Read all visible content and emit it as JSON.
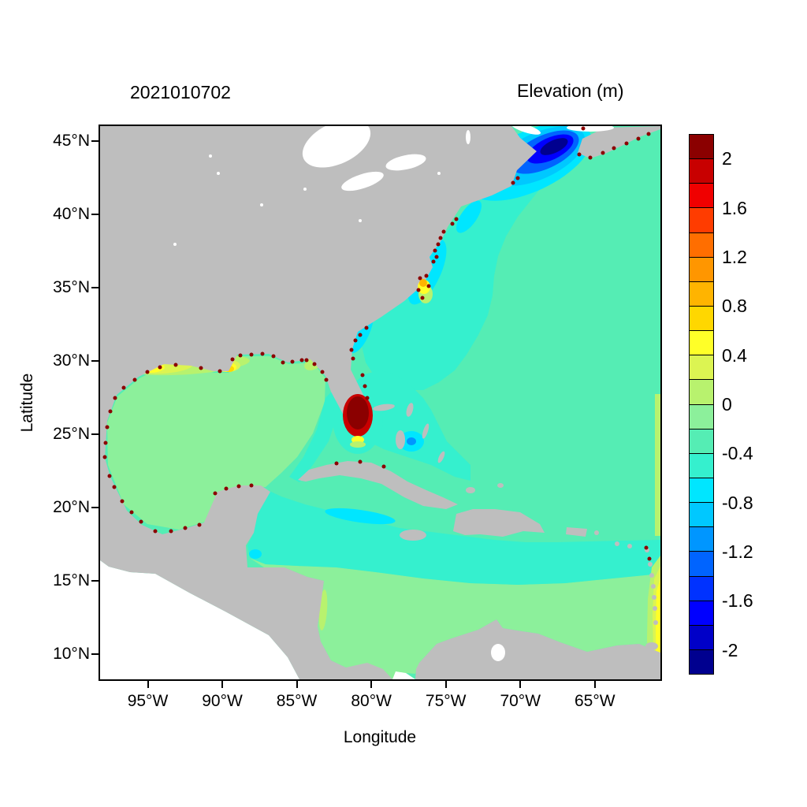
{
  "chart_data": {
    "type": "heatmap",
    "title": "2021010702",
    "colorbar_title": "Elevation (m)",
    "xlabel": "Longitude",
    "ylabel": "Latitude",
    "x_ticks": [
      "95°W",
      "90°W",
      "85°W",
      "80°W",
      "75°W",
      "70°W",
      "65°W"
    ],
    "x_tick_lons_w": [
      95,
      90,
      85,
      80,
      75,
      70,
      65
    ],
    "y_ticks": [
      "10°N",
      "15°N",
      "20°N",
      "25°N",
      "30°N",
      "35°N",
      "40°N",
      "45°N"
    ],
    "y_tick_lats_n": [
      10,
      15,
      20,
      25,
      30,
      35,
      40,
      45
    ],
    "lon_range_w": [
      98.2,
      60.6
    ],
    "lat_range_n": [
      8.3,
      46.0
    ],
    "grid": false,
    "land_color": "#bebebe",
    "unmodeled_water_color": "#ffffff",
    "colorbar": {
      "position": "right",
      "range": [
        -2.2,
        2.2
      ],
      "step": 0.2,
      "tick_values": [
        2,
        1.6,
        1.2,
        0.8,
        0.4,
        0,
        -0.4,
        -0.8,
        -1.2,
        -1.6,
        -2
      ],
      "tick_labels": [
        "2",
        "1.6",
        "1.2",
        "0.8",
        "0.4",
        "0",
        "-0.4",
        "-0.8",
        "-1.2",
        "-1.6",
        "-2"
      ],
      "colors": [
        "#00008F",
        "#0000C8",
        "#0000FF",
        "#0032FF",
        "#0064FF",
        "#0096FF",
        "#00C8FF",
        "#00E6FF",
        "#35F0CE",
        "#55EDB4",
        "#8CF09B",
        "#B8F26E",
        "#DCF452",
        "#FFFF28",
        "#FFD700",
        "#FFB400",
        "#FF9600",
        "#FF6E00",
        "#FF3C00",
        "#F00000",
        "#C80000",
        "#8B0000"
      ]
    },
    "region_values": {
      "open_atlantic": -0.3,
      "gulf_of_mexico": -0.1,
      "caribbean_south": -0.1,
      "caribbean_north": -0.5,
      "west_atlantic_shelf": -0.5,
      "bahamas_straits": -0.5,
      "coastal_midatlantic": -0.7,
      "cayman_trough": -0.7,
      "gulf_of_honduras": -0.7,
      "bahamas_spot": -0.7,
      "bahamas_spot_core": -1.1,
      "nicaragua_coast": 0.1,
      "gulf_of_maine_rings": [
        -0.7,
        -0.9,
        -1.3,
        -1.7,
        -2.1
      ],
      "south_florida_rings": [
        1.9,
        2.1
      ],
      "south_florida_fringe": [
        0.5,
        0.1
      ],
      "northern_gulf_rings": [
        0.1,
        0.3,
        0.5,
        0.7,
        1.1
      ],
      "right_edge_rings": [
        0.1,
        0.3,
        0.5
      ],
      "pamlico_rings": [
        0.1,
        0.5,
        0.9
      ],
      "coastal_wetting": 2.1
    }
  }
}
